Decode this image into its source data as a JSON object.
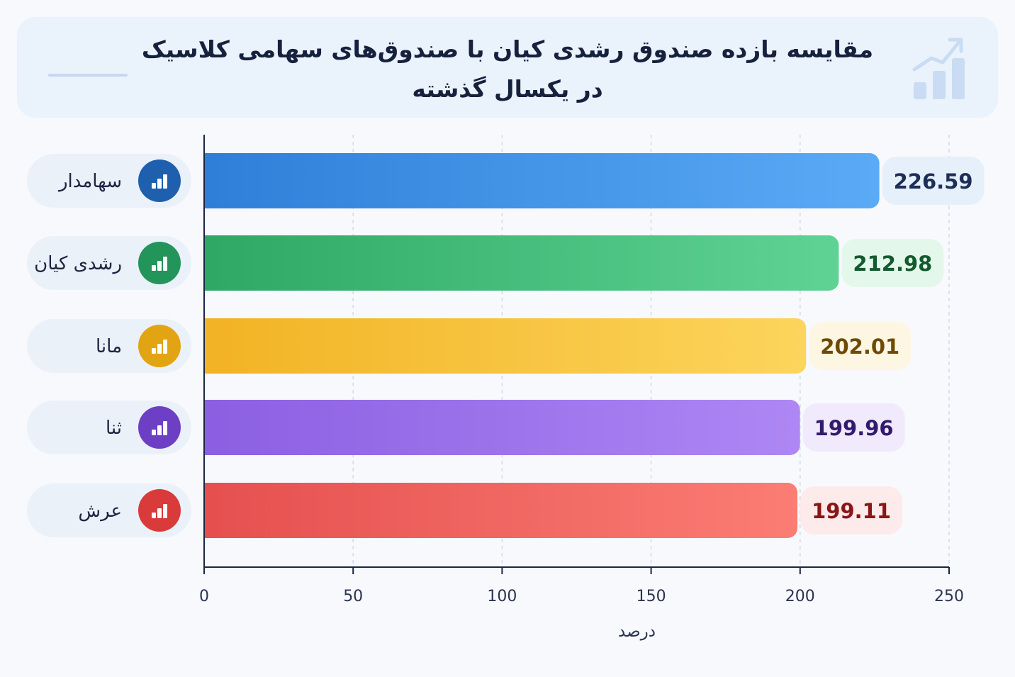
{
  "header": {
    "title_line1": "مقایسه بازده صندوق رشدی کیان با صندوق‌های سهامی کلاسیک",
    "title_line2": "در یکسال گذشته",
    "icon": "growth-chart-icon"
  },
  "chart_data": {
    "type": "bar",
    "orientation": "horizontal",
    "categories": [
      "سهامدار",
      "رشدی کیان",
      "مانا",
      "ثنا",
      "عرش"
    ],
    "values": [
      226.59,
      212.98,
      202.01,
      199.96,
      199.11
    ],
    "value_labels": [
      "226.59",
      "212.98",
      "202.01",
      "199.96",
      "199.11"
    ],
    "xlabel": "درصد",
    "ylabel": "",
    "xlim": [
      0,
      250
    ],
    "xticks": [
      0,
      50,
      100,
      150,
      200,
      250
    ],
    "grid": "vertical-dashed",
    "category_icon": "bar-chart-icon",
    "colors": [
      {
        "bar_start": "#2f7fd9",
        "bar_end": "#5aaaf6",
        "icon_bg": "#1e5fae",
        "value_bg": "#e6f0fb",
        "value_text": "#1d2f57"
      },
      {
        "bar_start": "#2ea864",
        "bar_end": "#5fd394",
        "icon_bg": "#23945a",
        "value_bg": "#e3f7ea",
        "value_text": "#145a30"
      },
      {
        "bar_start": "#f2b324",
        "bar_end": "#fcd55c",
        "icon_bg": "#e3a414",
        "value_bg": "#fdf6e2",
        "value_text": "#6e4a06"
      },
      {
        "bar_start": "#8c5fe2",
        "bar_end": "#ae87f5",
        "icon_bg": "#6c3fc4",
        "value_bg": "#f0eafc",
        "value_text": "#321a6e"
      },
      {
        "bar_start": "#e5504f",
        "bar_end": "#fb7d74",
        "icon_bg": "#d93a3a",
        "value_bg": "#fdeaea",
        "value_text": "#8a1616"
      }
    ]
  }
}
